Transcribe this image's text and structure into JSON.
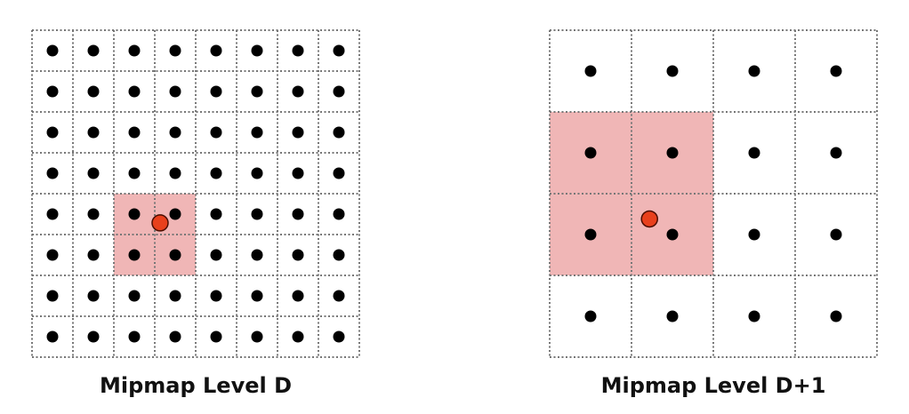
{
  "colors": {
    "highlight": "#f0b6b6",
    "gridline": "#777777",
    "sample_dot": "#000000",
    "lookup_point": "#e8401c",
    "lookup_point_stroke": "#4a0d00"
  },
  "levels": [
    {
      "caption": "Mipmap Level D",
      "grid_size": 8,
      "highlight_cells": {
        "col_start": 2,
        "row_start": 4,
        "cols": 2,
        "rows": 2
      },
      "lookup_point_uv": [
        0.3913,
        0.5895
      ]
    },
    {
      "caption": "Mipmap Level D+1",
      "grid_size": 4,
      "highlight_cells": {
        "col_start": 0,
        "row_start": 1,
        "cols": 2,
        "rows": 2
      },
      "lookup_point_uv": [
        0.305,
        0.5773
      ]
    }
  ]
}
